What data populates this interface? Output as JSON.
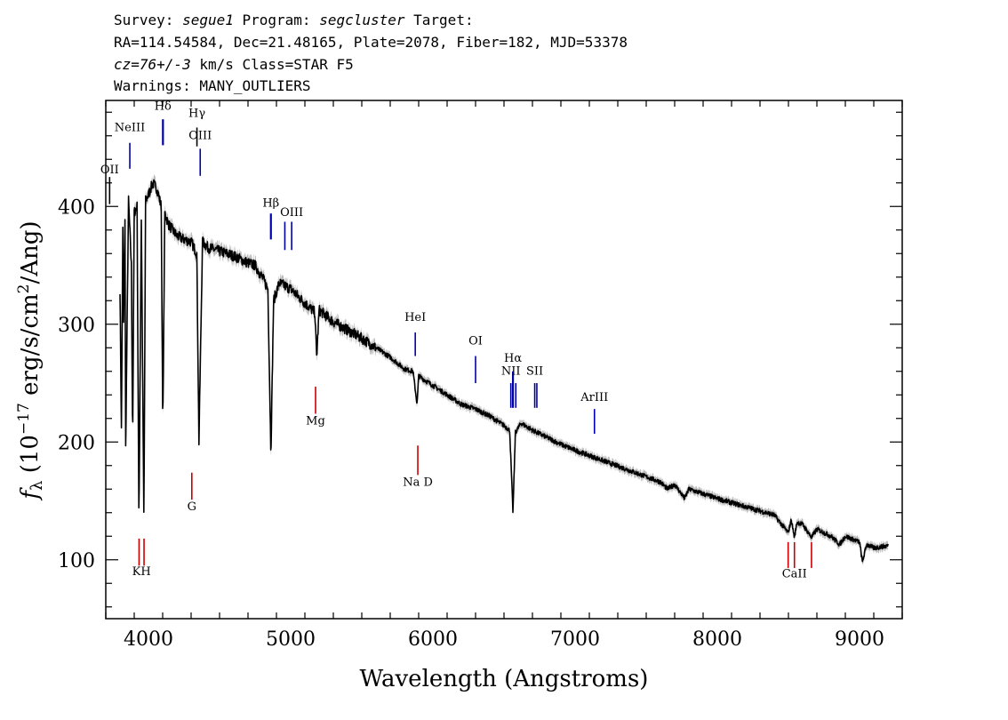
{
  "header": {
    "survey_label": "Survey: ",
    "survey": "segue1",
    "program_label": " Program: ",
    "program": "segcluster",
    "target_label": " Target:",
    "line2": "RA=114.54584, Dec=21.48165, Plate=2078, Fiber=182, MJD=53378",
    "cz": "cz=76+/-3",
    "cz_rest": " km/s Class=STAR F5",
    "warnings": "Warnings: MANY_OUTLIERS"
  },
  "chart_data": {
    "type": "line",
    "xlabel": "Wavelength (Angstroms)",
    "ylabel": "fλ (10⁻¹⁷ erg/s/cm²/Ang)",
    "xlim": [
      3700,
      9300
    ],
    "ylim": [
      50,
      490
    ],
    "xticks": [
      4000,
      5000,
      6000,
      7000,
      8000,
      9000
    ],
    "yticks": [
      100,
      200,
      300,
      400
    ],
    "series": [
      {
        "x": [
          3800,
          3810,
          3820,
          3825,
          3835,
          3840,
          3860,
          3880,
          3889,
          3900,
          3920,
          3933,
          3950,
          3968,
          3980,
          4000,
          4030,
          4060,
          4090,
          4101,
          4115,
          4140,
          4200,
          4250,
          4300,
          4340,
          4355,
          4380,
          4420,
          4500,
          4600,
          4700,
          4750,
          4800,
          4840,
          4861,
          4880,
          4920,
          5000,
          5100,
          5170,
          5183,
          5200,
          5300,
          5400,
          5500,
          5600,
          5700,
          5800,
          5860,
          5889,
          5900,
          5950,
          6000,
          6100,
          6200,
          6300,
          6400,
          6500,
          6540,
          6563,
          6580,
          6620,
          6700,
          6800,
          6900,
          7000,
          7200,
          7400,
          7600,
          7650,
          7700,
          7770,
          7800,
          8000,
          8200,
          8400,
          8498,
          8520,
          8542,
          8560,
          8600,
          8662,
          8700,
          8800,
          8860,
          8900,
          9000,
          9020,
          9050,
          9100,
          9200
        ],
        "values": [
          330,
          210,
          380,
          300,
          390,
          195,
          405,
          350,
          200,
          395,
          400,
          130,
          390,
          132,
          405,
          410,
          420,
          415,
          400,
          210,
          395,
          385,
          375,
          372,
          370,
          360,
          200,
          370,
          365,
          362,
          358,
          352,
          350,
          340,
          330,
          190,
          320,
          335,
          330,
          318,
          310,
          272,
          312,
          302,
          295,
          288,
          280,
          272,
          262,
          260,
          232,
          256,
          252,
          248,
          240,
          232,
          228,
          222,
          214,
          210,
          140,
          208,
          216,
          210,
          204,
          198,
          193,
          184,
          175,
          166,
          160,
          164,
          152,
          160,
          152,
          145,
          138,
          123,
          134,
          119,
          132,
          130,
          119,
          126,
          120,
          113,
          120,
          115,
          98,
          113,
          110,
          112
        ]
      }
    ],
    "emission_lines": [
      {
        "name": "OII",
        "x": 3727,
        "color": "#000000",
        "label_y": 428,
        "top_y": 425,
        "bot_y": 402
      },
      {
        "name": "NeIII",
        "x": 3869,
        "color": "#0000aa",
        "label_y": 464,
        "top_y": 454,
        "bot_y": 432
      },
      {
        "name": "Hδ",
        "x": 4102,
        "color": "#0000aa",
        "label_y": 482,
        "top_y": 474,
        "bot_y": 452
      },
      {
        "name": "Hγ",
        "x": 4341,
        "color": "#000000",
        "label_y": 476,
        "top_y": 467,
        "bot_y": 451
      },
      {
        "name": "OIII",
        "x": 4364,
        "color": "#0000aa",
        "label_y": 457,
        "top_y": 449,
        "bot_y": 426
      },
      {
        "name": "Hβ",
        "x": 4861,
        "color": "#0000aa",
        "label_y": 400,
        "top_y": 394,
        "bot_y": 372
      },
      {
        "name": "OIII",
        "x": 4959,
        "color": "#0000aa",
        "label_y": "",
        "top_y": 387,
        "bot_y": 363
      },
      {
        "name": "OIII",
        "x": 5007,
        "color": "#0000aa",
        "label_y": 392,
        "top_y": 387,
        "bot_y": 363
      },
      {
        "name": "HeI",
        "x": 5876,
        "color": "#0000aa",
        "label_y": 303,
        "top_y": 293,
        "bot_y": 273
      },
      {
        "name": "OI",
        "x": 6300,
        "color": "#0000aa",
        "label_y": 283,
        "top_y": 273,
        "bot_y": 250
      },
      {
        "name": "NII",
        "x": 6548,
        "color": "#0000aa",
        "label_y": 257,
        "top_y": 250,
        "bot_y": 229
      },
      {
        "name": "Hα",
        "x": 6563,
        "color": "#0000aa",
        "label_y": 268,
        "top_y": 260,
        "bot_y": 229
      },
      {
        "name": "NII",
        "x": 6583,
        "color": "#0000aa",
        "label_y": "",
        "top_y": 250,
        "bot_y": 229
      },
      {
        "name": "SII",
        "x": 6716,
        "color": "#0000aa",
        "label_y": 257,
        "top_y": 250,
        "bot_y": 229
      },
      {
        "name": "SII",
        "x": 6731,
        "color": "#0000aa",
        "label_y": "",
        "top_y": 250,
        "bot_y": 229
      },
      {
        "name": "ArIII",
        "x": 7136,
        "color": "#0000aa",
        "label_y": 235,
        "top_y": 228,
        "bot_y": 207
      }
    ],
    "absorption_lines": [
      {
        "name": "K",
        "x": 3934,
        "color": "#cc0000",
        "label_y": 87,
        "top_y": 118,
        "bot_y": 95
      },
      {
        "name": "H",
        "x": 3969,
        "color": "#cc0000",
        "label_y": 87,
        "top_y": 118,
        "bot_y": 95
      },
      {
        "name": "G",
        "x": 4305,
        "color": "#cc0000",
        "label_y": 142,
        "top_y": 174,
        "bot_y": 151
      },
      {
        "name": "Mg",
        "x": 5175,
        "color": "#cc0000",
        "label_y": 215,
        "top_y": 247,
        "bot_y": 224
      },
      {
        "name": "Na",
        "x": 5894,
        "color": "#cc0000",
        "label_y": 163,
        "top_y": 197,
        "bot_y": 172
      },
      {
        "name": "CaII",
        "x": 8498,
        "color": "#cc0000",
        "label_y": 85,
        "top_y": 115,
        "bot_y": 93
      },
      {
        "name": "CaII",
        "x": 8542,
        "color": "#cc0000",
        "label_y": "",
        "top_y": 115,
        "bot_y": 93
      },
      {
        "name": "CaII",
        "x": 8662,
        "color": "#cc0000",
        "label_y": "",
        "top_y": 115,
        "bot_y": 93
      }
    ],
    "line_label_text": {
      "k_h": "KH",
      "na_d": "Na  D"
    }
  }
}
